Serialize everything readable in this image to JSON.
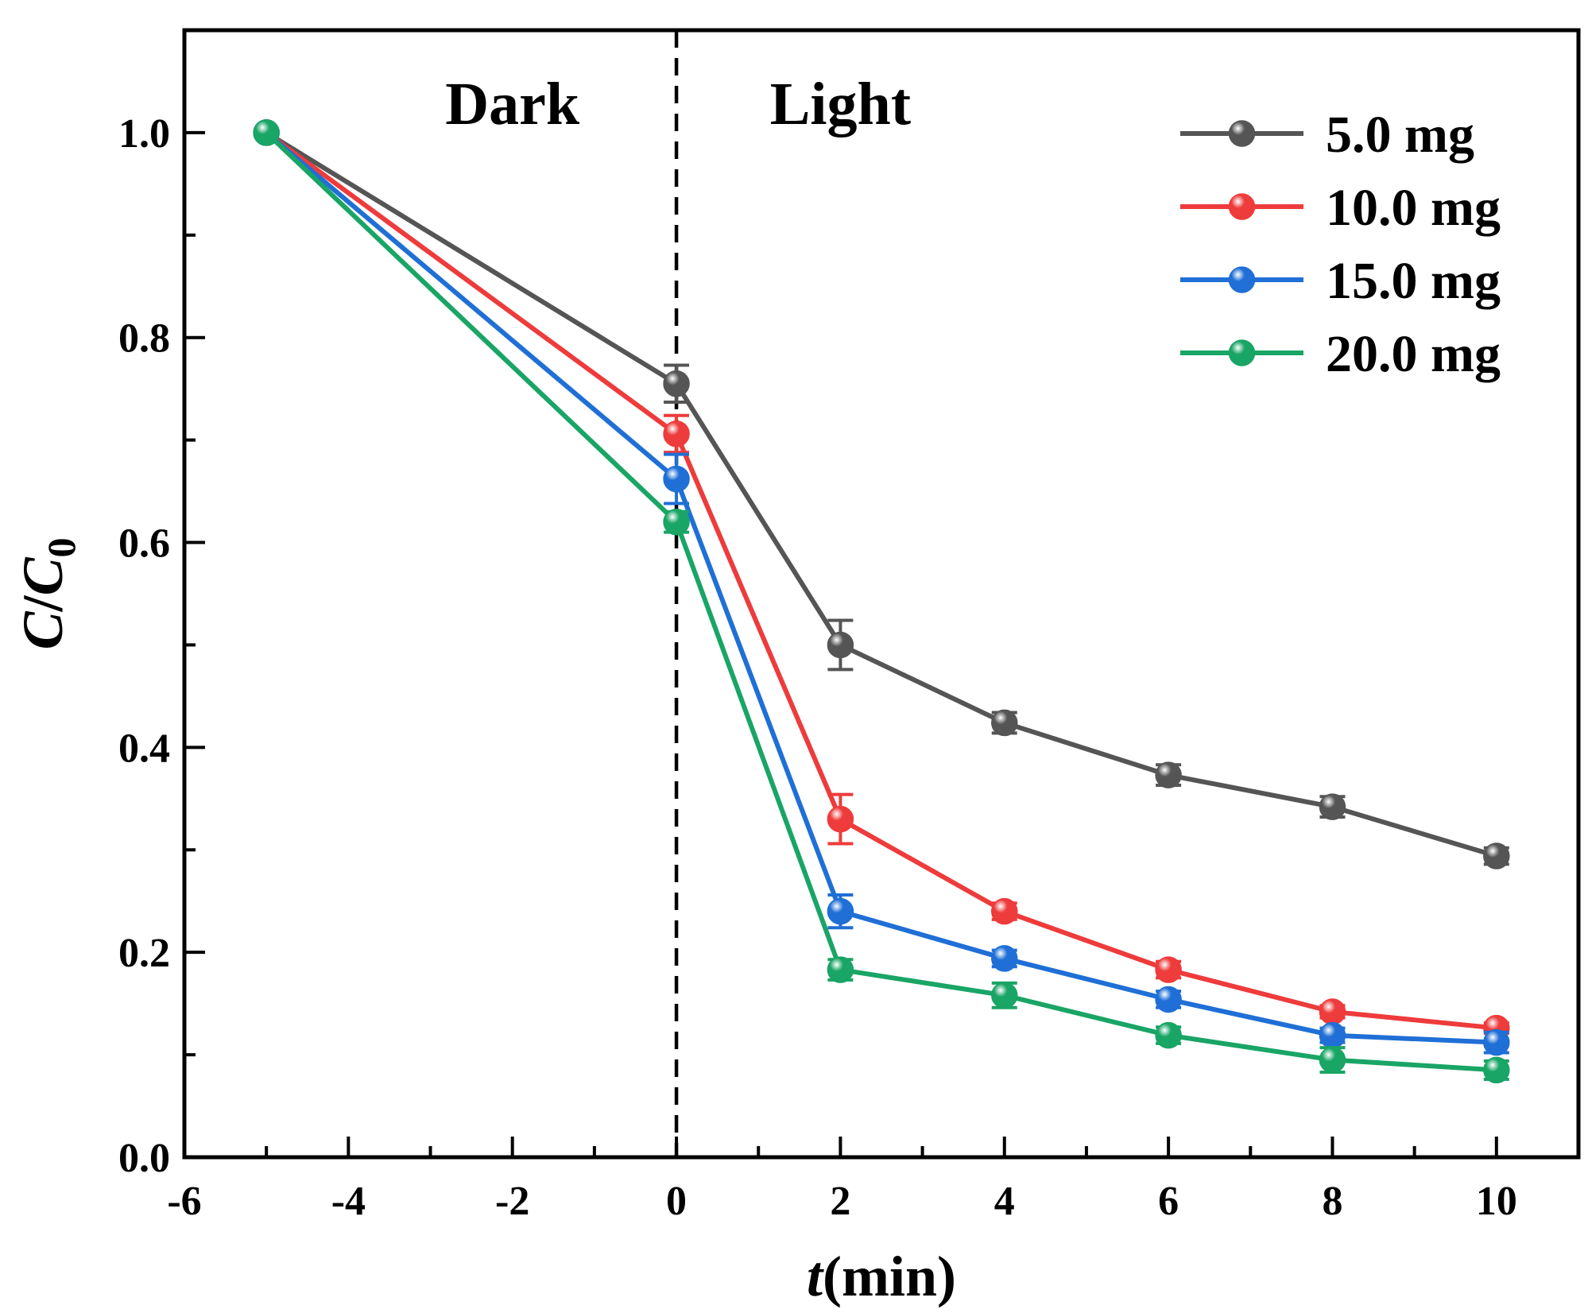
{
  "chart_data": {
    "type": "line",
    "title": "",
    "xlabel": {
      "italic": "t",
      "rest": "(min)"
    },
    "ylabel": {
      "italic_c": "C",
      "slash": "/",
      "italic_c0": "C",
      "subscript": "0"
    },
    "xlim": [
      -6,
      11
    ],
    "ylim": [
      0,
      1.1
    ],
    "xticks": [
      -6,
      -4,
      -2,
      0,
      2,
      4,
      6,
      8,
      10
    ],
    "xtick_labels": [
      "-6",
      "-4",
      "-2",
      "0",
      "2",
      "4",
      "6",
      "8",
      "10"
    ],
    "yticks": [
      0.0,
      0.2,
      0.4,
      0.6,
      0.8,
      1.0
    ],
    "ytick_labels": [
      "0.0",
      "0.2",
      "0.4",
      "0.6",
      "0.8",
      "1.0"
    ],
    "divider_x": 0,
    "regions": [
      {
        "label": "Dark",
        "x": -2
      },
      {
        "label": "Light",
        "x": 2
      }
    ],
    "legend_position": "top-right",
    "x": [
      -5,
      0,
      2,
      4,
      6,
      8,
      10
    ],
    "series": [
      {
        "name": "5.0 mg",
        "color": "#555555",
        "values": [
          1.0,
          0.755,
          0.5,
          0.424,
          0.373,
          0.342,
          0.294
        ],
        "errors": [
          0,
          0.018,
          0.024,
          0.01,
          0.01,
          0.01,
          0.008
        ]
      },
      {
        "name": "10.0 mg",
        "color": "#ee3b3b",
        "values": [
          1.0,
          0.706,
          0.33,
          0.24,
          0.183,
          0.142,
          0.126
        ],
        "errors": [
          0,
          0.018,
          0.024,
          0.008,
          0.008,
          0.006,
          0.005
        ]
      },
      {
        "name": "15.0 mg",
        "color": "#1f6fd6",
        "values": [
          1.0,
          0.662,
          0.24,
          0.194,
          0.154,
          0.119,
          0.112
        ],
        "errors": [
          0,
          0.024,
          0.016,
          0.008,
          0.008,
          0.007,
          0.01
        ]
      },
      {
        "name": "20.0 mg",
        "color": "#19a565",
        "values": [
          1.0,
          0.62,
          0.183,
          0.158,
          0.119,
          0.095,
          0.085
        ],
        "errors": [
          0,
          0.01,
          0.01,
          0.012,
          0.008,
          0.012,
          0.009
        ]
      }
    ]
  }
}
